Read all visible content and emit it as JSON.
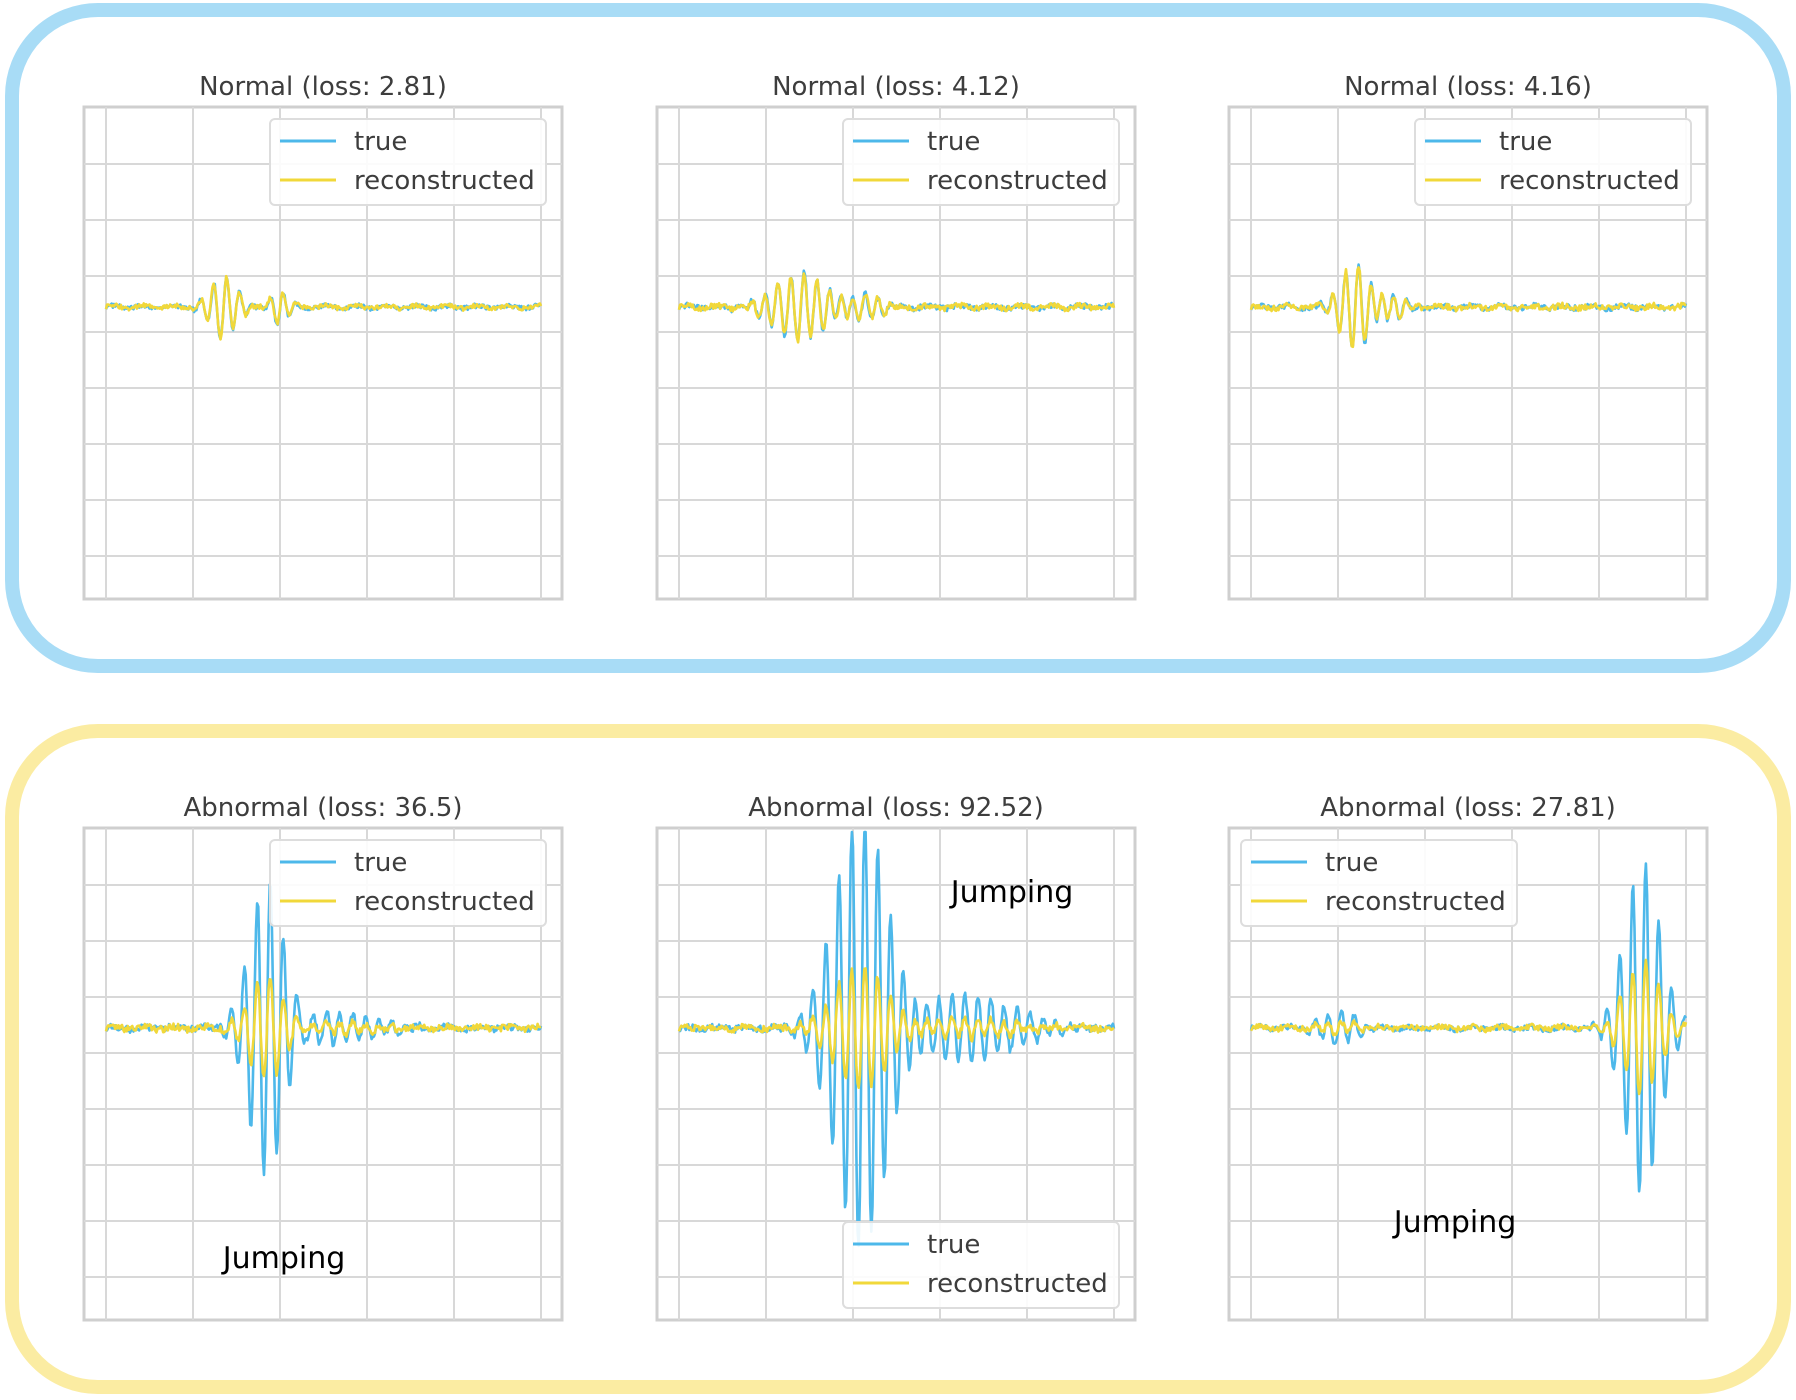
{
  "colors": {
    "normal_box": "#a8dcf6",
    "abnormal_box": "#fbeca2",
    "true_line": "#4db8ea",
    "reconstructed_line": "#f1d83a",
    "grid": "#d8d8d8",
    "frame": "#cfcfcf",
    "title_text": "#3d3d3d",
    "annotation_text": "#000000"
  },
  "legend": {
    "true_label": "true",
    "reconstructed_label": "reconstructed"
  },
  "chart_data": [
    {
      "type": "line",
      "group": "normal",
      "title": "Normal (loss: 2.81)",
      "legend": "top-right",
      "grid": true,
      "xlim": [
        0,
        100
      ],
      "ylim": [
        -10,
        10
      ],
      "annotation": "",
      "series": [
        {
          "name": "true",
          "events": [
            {
              "c": 27,
              "a": 1.1,
              "w": 3
            },
            {
              "c": 40,
              "a": 0.6,
              "w": 2
            }
          ],
          "noise": 0.08,
          "scale": 1.0,
          "mag": 1.0
        },
        {
          "name": "reconstructed",
          "events": [
            {
              "c": 27,
              "a": 1.1,
              "w": 3
            },
            {
              "c": 40,
              "a": 0.6,
              "w": 2
            }
          ],
          "noise": 0.08,
          "scale": 1.0,
          "mag": 1.0
        }
      ]
    },
    {
      "type": "line",
      "group": "normal",
      "title": "Normal (loss: 4.12)",
      "legend": "top-right",
      "grid": true,
      "xlim": [
        0,
        100
      ],
      "ylim": [
        -10,
        10
      ],
      "annotation": "",
      "series": [
        {
          "name": "true",
          "events": [
            {
              "c": 28,
              "a": 1.2,
              "w": 6
            },
            {
              "c": 42,
              "a": 0.5,
              "w": 4
            }
          ],
          "noise": 0.1,
          "scale": 1.0,
          "mag": 1.0
        },
        {
          "name": "reconstructed",
          "events": [
            {
              "c": 28,
              "a": 1.2,
              "w": 6
            },
            {
              "c": 42,
              "a": 0.5,
              "w": 4
            }
          ],
          "noise": 0.1,
          "scale": 1.0,
          "mag": 1.0
        }
      ]
    },
    {
      "type": "line",
      "group": "normal",
      "title": "Normal (loss: 4.16)",
      "legend": "top-right",
      "grid": true,
      "xlim": [
        0,
        100
      ],
      "ylim": [
        -10,
        10
      ],
      "annotation": "",
      "series": [
        {
          "name": "true",
          "events": [
            {
              "c": 24,
              "a": 1.5,
              "w": 3.5
            },
            {
              "c": 32,
              "a": 0.5,
              "w": 3
            }
          ],
          "noise": 0.1,
          "scale": 1.0,
          "mag": 1.0
        },
        {
          "name": "reconstructed",
          "events": [
            {
              "c": 24,
              "a": 1.5,
              "w": 3.5
            },
            {
              "c": 32,
              "a": 0.5,
              "w": 3
            }
          ],
          "noise": 0.1,
          "scale": 1.0,
          "mag": 1.0
        }
      ]
    },
    {
      "type": "line",
      "group": "abnormal",
      "title": "Abnormal (loss: 36.5)",
      "legend": "top-right",
      "grid": true,
      "xlim": [
        0,
        100
      ],
      "ylim": [
        -10,
        10
      ],
      "annotation": "Jumping",
      "series": [
        {
          "name": "true",
          "events": [
            {
              "c": 37,
              "a": 5.5,
              "w": 4
            },
            {
              "c": 50,
              "a": 0.6,
              "w": 10
            }
          ],
          "noise": 0.12,
          "scale": 1.0,
          "mag": 1.0
        },
        {
          "name": "reconstructed",
          "events": [
            {
              "c": 37,
              "a": 5.5,
              "w": 4
            },
            {
              "c": 50,
              "a": 0.6,
              "w": 10
            }
          ],
          "noise": 0.12,
          "scale": 0.35,
          "mag": 1.0
        }
      ]
    },
    {
      "type": "line",
      "group": "abnormal",
      "title": "Abnormal (loss: 92.52)",
      "legend": "bottom-right",
      "grid": true,
      "xlim": [
        0,
        100
      ],
      "ylim": [
        -10,
        10
      ],
      "annotation": "Jumping",
      "series": [
        {
          "name": "true",
          "events": [
            {
              "c": 42,
              "a": 8,
              "w": 6
            },
            {
              "c": 65,
              "a": 1.2,
              "w": 12
            }
          ],
          "noise": 0.12,
          "scale": 1.0,
          "mag": 1.0
        },
        {
          "name": "reconstructed",
          "events": [
            {
              "c": 42,
              "a": 8,
              "w": 6
            },
            {
              "c": 65,
              "a": 1.2,
              "w": 12
            }
          ],
          "noise": 0.12,
          "scale": 0.28,
          "mag": 1.0
        }
      ]
    },
    {
      "type": "line",
      "group": "abnormal",
      "title": "Abnormal (loss: 27.81)",
      "legend": "top-left",
      "grid": true,
      "xlim": [
        0,
        100
      ],
      "ylim": [
        -10,
        10
      ],
      "annotation": "Jumping",
      "series": [
        {
          "name": "true",
          "events": [
            {
              "c": 90,
              "a": 6,
              "w": 4
            },
            {
              "c": 20,
              "a": 0.6,
              "w": 4
            }
          ],
          "noise": 0.1,
          "scale": 1.0,
          "mag": 1.0
        },
        {
          "name": "reconstructed",
          "events": [
            {
              "c": 90,
              "a": 6,
              "w": 4
            },
            {
              "c": 20,
              "a": 0.6,
              "w": 4
            }
          ],
          "noise": 0.1,
          "scale": 0.4,
          "mag": 1.0
        }
      ]
    }
  ]
}
